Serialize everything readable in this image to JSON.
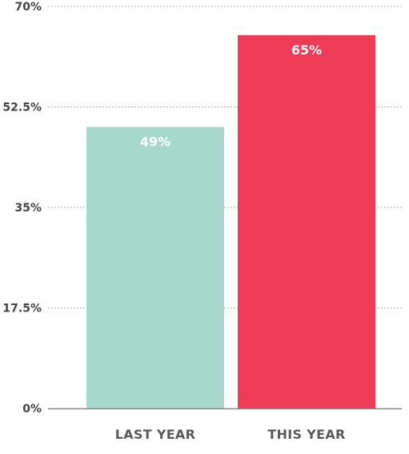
{
  "chart_data": {
    "type": "bar",
    "categories": [
      "LAST YEAR",
      "THIS YEAR"
    ],
    "values": [
      49,
      65
    ],
    "data_labels": [
      "49%",
      "65%"
    ],
    "bar_colors": [
      "#a6d9cb",
      "#ee3c56"
    ],
    "ylim": [
      0,
      70
    ],
    "y_ticks": [
      0,
      17.5,
      35,
      52.5,
      70
    ],
    "y_tick_labels": [
      "0%",
      "17.5%",
      "35%",
      "52.5%",
      "70%"
    ],
    "title": "",
    "xlabel": "",
    "ylabel": "",
    "grid": true,
    "grid_color": "#9a9a9a",
    "axis_color": "#888888"
  }
}
